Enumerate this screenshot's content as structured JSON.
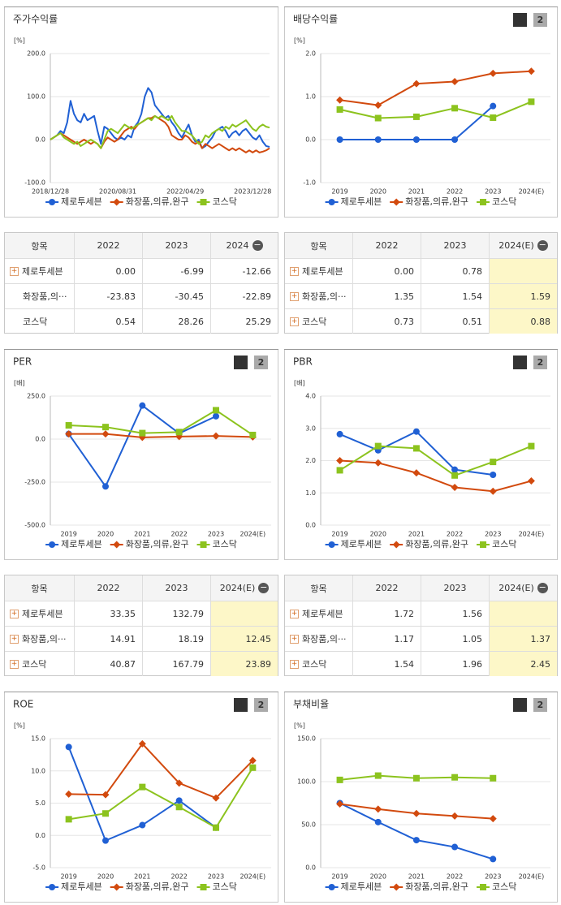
{
  "tab_buttons": [
    "1",
    "2"
  ],
  "chart_data": [
    {
      "type": "line",
      "title": "주가수익률",
      "unit": "[%]",
      "categories": [
        "2018/12/28",
        null,
        null,
        null,
        null,
        null,
        null,
        null,
        null,
        null,
        null,
        null,
        null,
        null,
        null,
        null,
        null,
        null,
        null,
        null,
        "2020/08/31",
        null,
        null,
        null,
        null,
        null,
        null,
        null,
        null,
        null,
        null,
        null,
        null,
        null,
        null,
        null,
        null,
        null,
        null,
        null,
        "2022/04/29",
        null,
        null,
        null,
        null,
        null,
        null,
        null,
        null,
        null,
        null,
        null,
        null,
        null,
        null,
        null,
        null,
        null,
        null,
        null,
        "2023/12/28",
        null,
        null,
        null,
        null,
        null
      ],
      "ylim": [
        -100,
        200
      ],
      "yticks": [
        {
          "value": -100,
          "label": "-100.0"
        },
        {
          "value": 0,
          "label": "0.0"
        },
        {
          "value": 100,
          "label": "100.0"
        },
        {
          "value": 200,
          "label": "200.0"
        }
      ],
      "series": [
        {
          "name": "제로투세븐",
          "color": "#2060d4",
          "marker": "circle",
          "values": [
            0,
            5,
            10,
            20,
            15,
            40,
            90,
            60,
            45,
            40,
            60,
            45,
            50,
            55,
            20,
            -10,
            30,
            25,
            15,
            5,
            0,
            5,
            0,
            10,
            5,
            30,
            40,
            60,
            100,
            120,
            110,
            80,
            70,
            60,
            50,
            55,
            40,
            30,
            15,
            5,
            20,
            35,
            10,
            -5,
            0,
            -20,
            -15,
            -5,
            5,
            20,
            25,
            30,
            20,
            5,
            15,
            20,
            10,
            20,
            25,
            15,
            5,
            0,
            10,
            -5,
            -15,
            -17
          ]
        },
        {
          "name": "화장품,의류,완구",
          "color": "#d24a0e",
          "marker": "diamond",
          "values": [
            0,
            5,
            10,
            15,
            10,
            5,
            0,
            -5,
            -10,
            -5,
            0,
            -5,
            -10,
            -5,
            -10,
            -20,
            -5,
            5,
            0,
            -5,
            0,
            10,
            20,
            25,
            30,
            25,
            35,
            40,
            45,
            50,
            50,
            55,
            50,
            45,
            40,
            30,
            10,
            5,
            0,
            0,
            10,
            5,
            -5,
            -10,
            -5,
            -20,
            -10,
            -15,
            -20,
            -15,
            -10,
            -15,
            -20,
            -25,
            -20,
            -25,
            -20,
            -25,
            -30,
            -25,
            -30,
            -25,
            -30,
            -28,
            -25,
            -20
          ]
        },
        {
          "name": "코스닥",
          "color": "#8cc31e",
          "marker": "square",
          "values": [
            0,
            5,
            10,
            15,
            5,
            0,
            -5,
            -10,
            -5,
            -15,
            -10,
            -5,
            0,
            -5,
            -10,
            -20,
            0,
            20,
            25,
            20,
            15,
            25,
            35,
            30,
            25,
            30,
            35,
            40,
            45,
            50,
            45,
            55,
            50,
            55,
            50,
            45,
            55,
            40,
            30,
            20,
            20,
            15,
            10,
            0,
            -10,
            -5,
            10,
            5,
            15,
            20,
            25,
            20,
            30,
            25,
            35,
            30,
            35,
            40,
            45,
            35,
            25,
            20,
            30,
            35,
            30,
            28
          ]
        }
      ],
      "markers": false,
      "grid": true
    },
    {
      "type": "line",
      "title": "배당수익률",
      "unit": "[%]",
      "categories": [
        "2019",
        "2020",
        "2021",
        "2022",
        "2023",
        "2024(E)"
      ],
      "ylim": [
        -1,
        2
      ],
      "yticks": [
        {
          "value": -1,
          "label": "-1.0"
        },
        {
          "value": 0,
          "label": "0.0"
        },
        {
          "value": 1,
          "label": "1.0"
        },
        {
          "value": 2,
          "label": "2.0"
        }
      ],
      "series": [
        {
          "name": "제로투세븐",
          "color": "#2060d4",
          "marker": "circle",
          "values": [
            0,
            0,
            0,
            0,
            0.78,
            null
          ]
        },
        {
          "name": "화장품,의류,완구",
          "color": "#d24a0e",
          "marker": "diamond",
          "values": [
            0.92,
            0.8,
            1.3,
            1.35,
            1.54,
            1.59
          ]
        },
        {
          "name": "코스닥",
          "color": "#8cc31e",
          "marker": "square",
          "values": [
            0.7,
            0.5,
            0.53,
            0.73,
            0.51,
            0.88
          ]
        }
      ],
      "markers": true,
      "grid": true
    },
    {
      "type": "line",
      "title": "PER",
      "unit": "[배]",
      "categories": [
        "2019",
        "2020",
        "2021",
        "2022",
        "2023",
        "2024(E)"
      ],
      "ylim": [
        -500,
        250
      ],
      "yticks": [
        {
          "value": -500,
          "label": "-500.0"
        },
        {
          "value": -250,
          "label": "-250.0"
        },
        {
          "value": 0,
          "label": "0.0"
        },
        {
          "value": 250,
          "label": "250.0"
        }
      ],
      "series": [
        {
          "name": "제로투세븐",
          "color": "#2060d4",
          "marker": "circle",
          "values": [
            30,
            -275,
            195,
            33.35,
            132.79,
            null
          ]
        },
        {
          "name": "화장품,의류,완구",
          "color": "#d24a0e",
          "marker": "diamond",
          "values": [
            30,
            30,
            10,
            14.91,
            18.19,
            12.45
          ]
        },
        {
          "name": "코스닥",
          "color": "#8cc31e",
          "marker": "square",
          "values": [
            80,
            70,
            35,
            40.87,
            167.79,
            23.89
          ]
        }
      ],
      "markers": true,
      "grid": true
    },
    {
      "type": "line",
      "title": "PBR",
      "unit": "[배]",
      "categories": [
        "2019",
        "2020",
        "2021",
        "2022",
        "2023",
        "2024(E)"
      ],
      "ylim": [
        0,
        4
      ],
      "yticks": [
        {
          "value": 0,
          "label": "0.0"
        },
        {
          "value": 1,
          "label": "1.0"
        },
        {
          "value": 2,
          "label": "2.0"
        },
        {
          "value": 3,
          "label": "3.0"
        },
        {
          "value": 4,
          "label": "4.0"
        }
      ],
      "series": [
        {
          "name": "제로투세븐",
          "color": "#2060d4",
          "marker": "circle",
          "values": [
            2.82,
            2.32,
            2.9,
            1.72,
            1.56,
            null
          ]
        },
        {
          "name": "화장품,의류,완구",
          "color": "#d24a0e",
          "marker": "diamond",
          "values": [
            2.0,
            1.93,
            1.62,
            1.17,
            1.05,
            1.37
          ]
        },
        {
          "name": "코스닥",
          "color": "#8cc31e",
          "marker": "square",
          "values": [
            1.7,
            2.45,
            2.38,
            1.54,
            1.96,
            2.45
          ]
        }
      ],
      "markers": true,
      "grid": true
    },
    {
      "type": "line",
      "title": "ROE",
      "unit": "[%]",
      "categories": [
        "2019",
        "2020",
        "2021",
        "2022",
        "2023",
        "2024(E)"
      ],
      "ylim": [
        -5,
        15
      ],
      "yticks": [
        {
          "value": -5,
          "label": "-5.0"
        },
        {
          "value": 0,
          "label": "0.0"
        },
        {
          "value": 5,
          "label": "5.0"
        },
        {
          "value": 10,
          "label": "10.0"
        },
        {
          "value": 15,
          "label": "15.0"
        }
      ],
      "series": [
        {
          "name": "제로투세븐",
          "color": "#2060d4",
          "marker": "circle",
          "values": [
            13.7,
            -0.8,
            1.6,
            5.4,
            1.2,
            null
          ]
        },
        {
          "name": "화장품,의류,완구",
          "color": "#d24a0e",
          "marker": "diamond",
          "values": [
            6.4,
            6.3,
            14.2,
            8.1,
            5.8,
            11.6
          ]
        },
        {
          "name": "코스닥",
          "color": "#8cc31e",
          "marker": "square",
          "values": [
            2.5,
            3.4,
            7.5,
            4.4,
            1.2,
            10.5
          ]
        }
      ],
      "markers": true,
      "grid": true
    },
    {
      "type": "line",
      "title": "부채비율",
      "unit": "[%]",
      "categories": [
        "2019",
        "2020",
        "2021",
        "2022",
        "2023",
        "2024(E)"
      ],
      "ylim": [
        0,
        150
      ],
      "yticks": [
        {
          "value": 0,
          "label": "0.0"
        },
        {
          "value": 50,
          "label": "50.0"
        },
        {
          "value": 100,
          "label": "100.0"
        },
        {
          "value": 150,
          "label": "150.0"
        }
      ],
      "series": [
        {
          "name": "제로투세븐",
          "color": "#2060d4",
          "marker": "circle",
          "values": [
            75,
            53,
            32,
            24,
            10,
            null
          ]
        },
        {
          "name": "화장품,의류,완구",
          "color": "#d24a0e",
          "marker": "diamond",
          "values": [
            74,
            68,
            63,
            60,
            57,
            null
          ]
        },
        {
          "name": "코스닥",
          "color": "#8cc31e",
          "marker": "square",
          "values": [
            102,
            107,
            104,
            105,
            104,
            null
          ]
        }
      ],
      "markers": true,
      "grid": true
    }
  ],
  "tables": [
    {
      "header": [
        "항목",
        "2022",
        "2023",
        "2024"
      ],
      "rows": [
        [
          "제로투세븐",
          "0.00",
          "-6.99",
          "-12.66"
        ],
        [
          "화장품,의···",
          "-23.83",
          "-30.45",
          "-22.89"
        ],
        [
          "코스닥",
          "0.54",
          "28.26",
          "25.29"
        ]
      ]
    },
    {
      "header": [
        "항목",
        "2022",
        "2023",
        "2024(E)"
      ],
      "rows": [
        [
          "제로투세븐",
          "0.00",
          "0.78",
          null
        ],
        [
          "화장품,의···",
          "1.35",
          "1.54",
          "1.59"
        ],
        [
          "코스닥",
          "0.73",
          "0.51",
          "0.88"
        ]
      ]
    },
    {
      "header": [
        "항목",
        "2022",
        "2023",
        "2024(E)"
      ],
      "rows": [
        [
          "제로투세븐",
          "33.35",
          "132.79",
          null
        ],
        [
          "화장품,의···",
          "14.91",
          "18.19",
          "12.45"
        ],
        [
          "코스닥",
          "40.87",
          "167.79",
          "23.89"
        ]
      ]
    },
    {
      "header": [
        "항목",
        "2022",
        "2023",
        "2024(E)"
      ],
      "rows": [
        [
          "제로투세븐",
          "1.72",
          "1.56",
          null
        ],
        [
          "화장품,의···",
          "1.17",
          "1.05",
          "1.37"
        ],
        [
          "코스닥",
          "1.54",
          "1.96",
          "2.45"
        ]
      ]
    }
  ]
}
